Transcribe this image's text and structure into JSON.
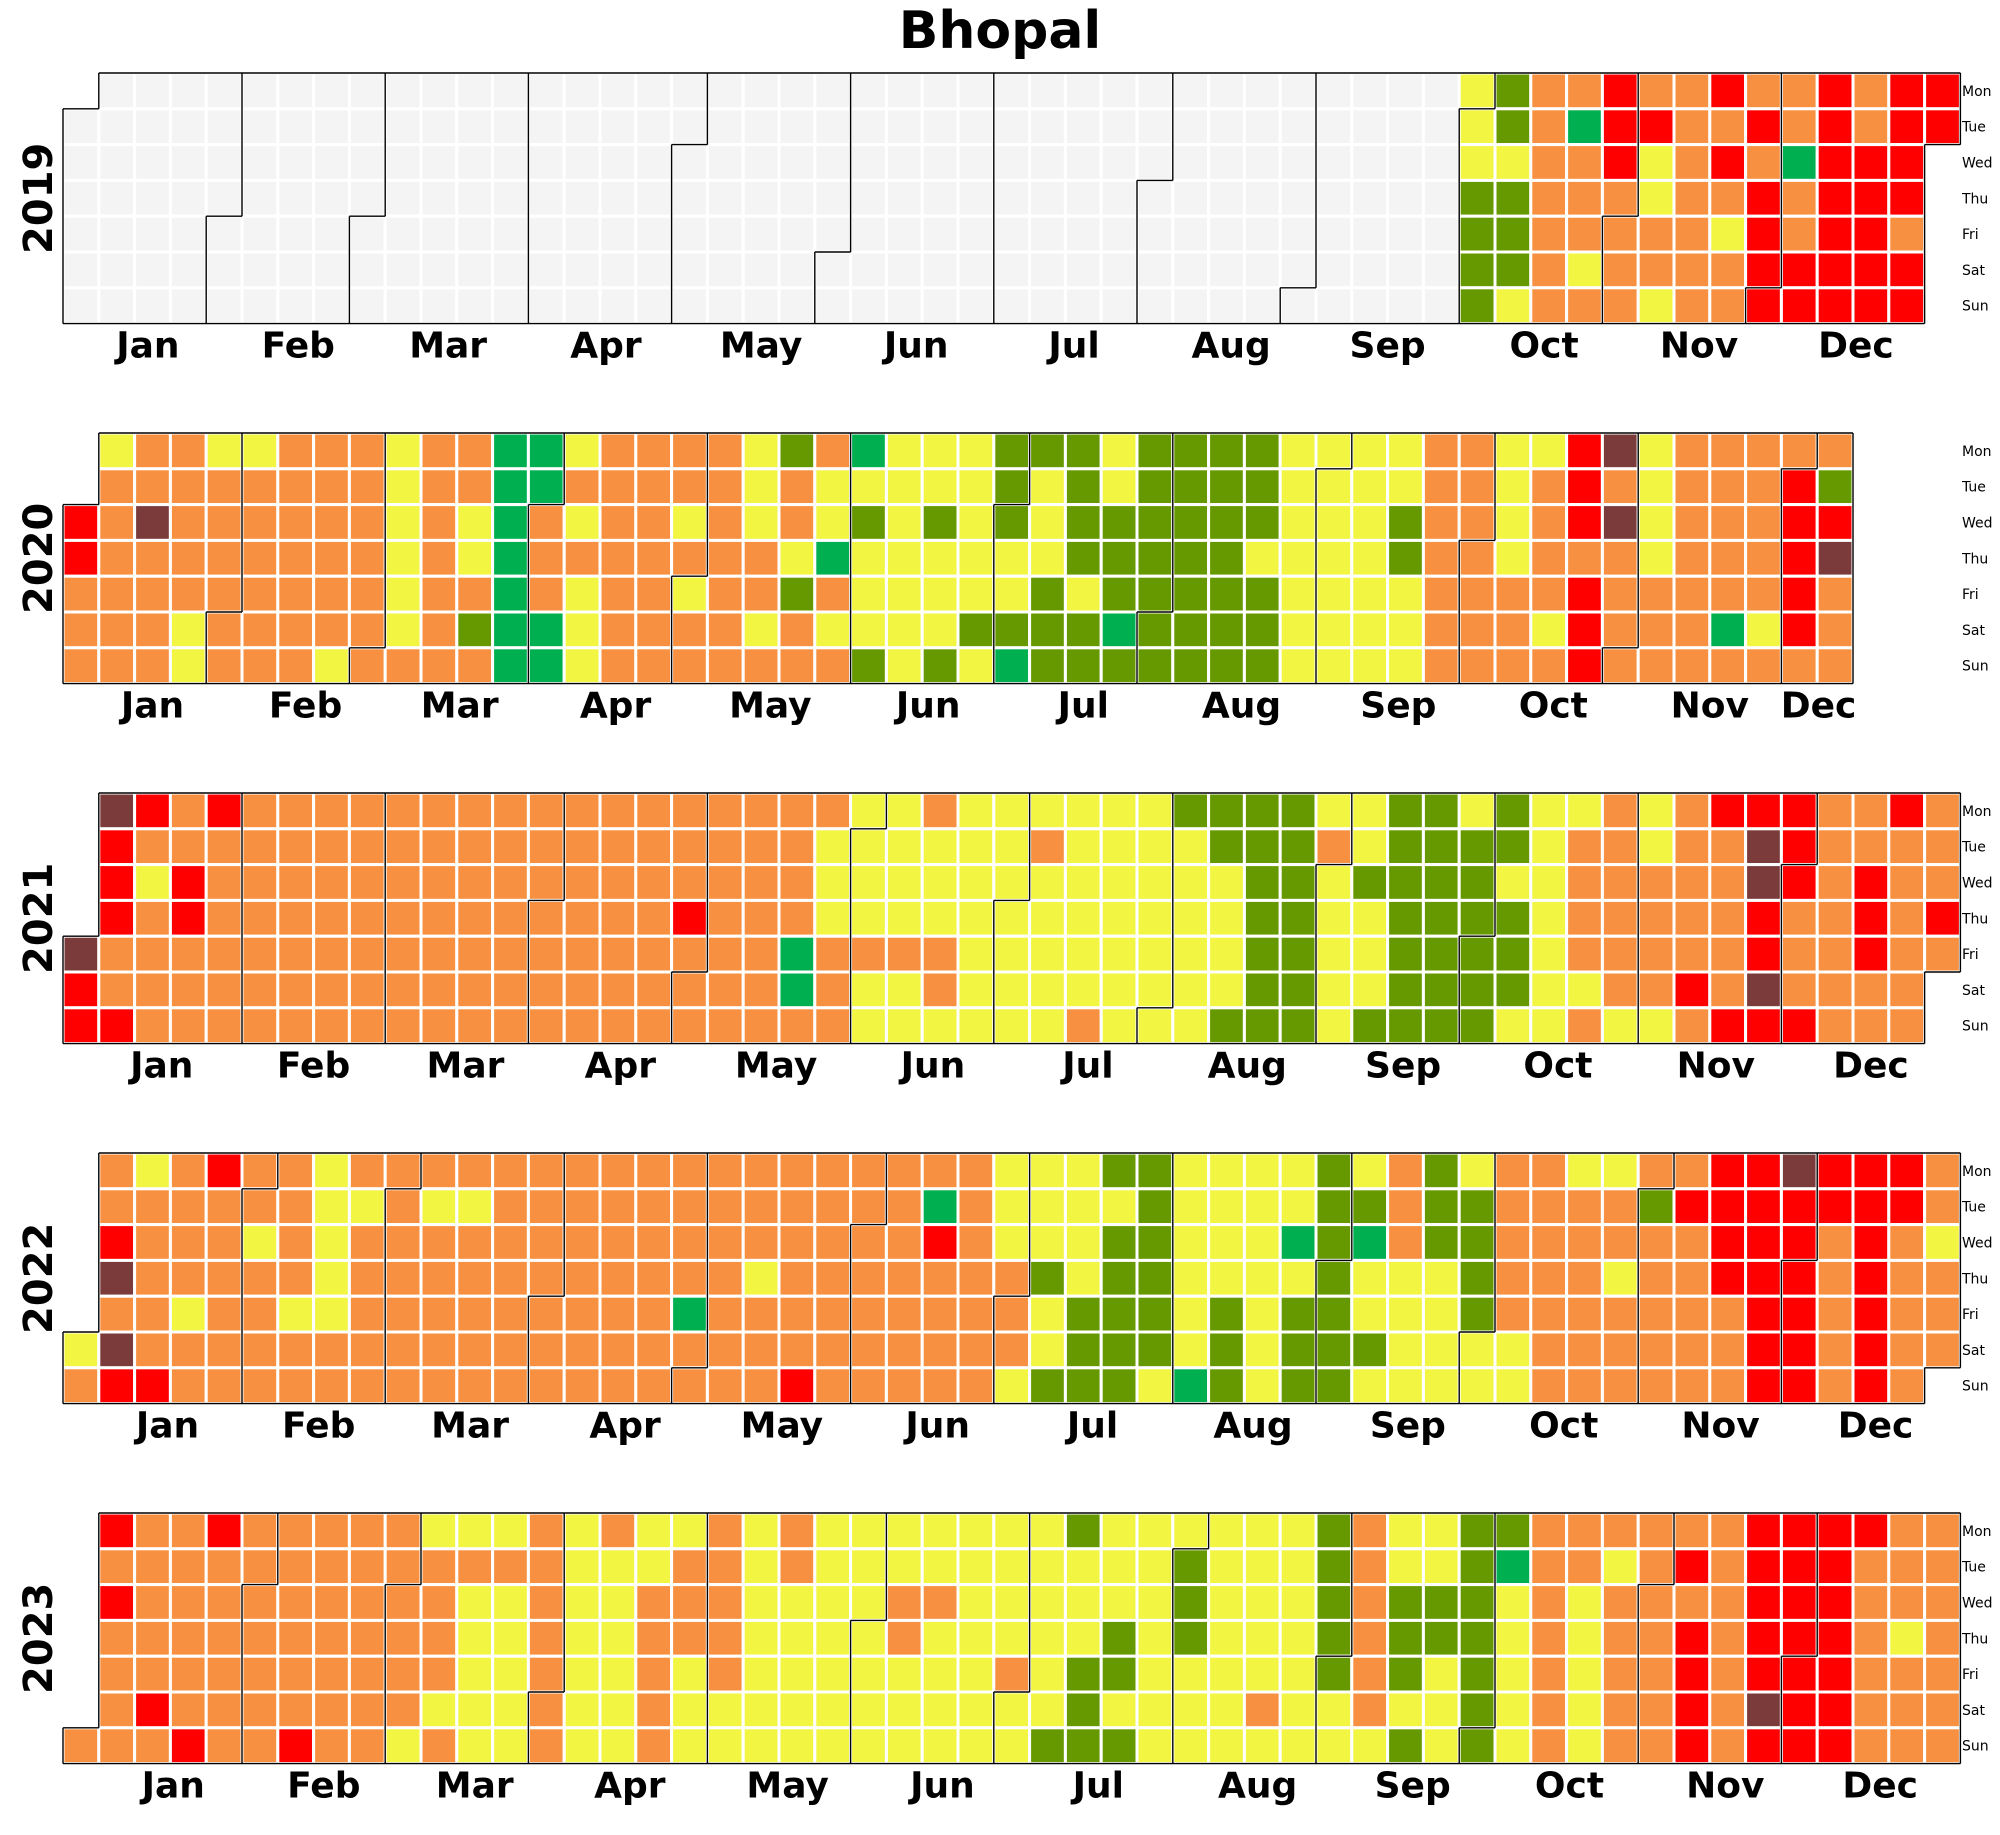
{
  "chart_data": {
    "type": "heatmap",
    "title": "Bhopal",
    "month_labels": [
      "Jan",
      "Feb",
      "Mar",
      "Apr",
      "May",
      "Jun",
      "Jul",
      "Aug",
      "Sep",
      "Oct",
      "Nov",
      "Dec"
    ],
    "weekday_labels": [
      "Mon",
      "Tue",
      "Wed",
      "Thu",
      "Fri",
      "Sat",
      "Sun"
    ],
    "colors": {
      "0": "#f4f4f4",
      "1": "#00b050",
      "2": "#669900",
      "3": "#f2f542",
      "4": "#f79040",
      "5": "#ff0000",
      "6": "#7b3b3b"
    },
    "years": [
      {
        "year": "2019",
        "weeks": [
          "_000000",
          "0000000",
          "0000000",
          "0000000",
          "0000000",
          "0000000",
          "0000000",
          "0000000",
          "0000000",
          "0000000",
          "0000000",
          "0000000",
          "0000000",
          "0000000",
          "0000000",
          "0000000",
          "0000000",
          "0000000",
          "0000000",
          "0000000",
          "0000000",
          "0000000",
          "0000000",
          "0000000",
          "0000000",
          "0000000",
          "0000000",
          "0000000",
          "0000000",
          "0000000",
          "0000000",
          "0000000",
          "0000000",
          "0000000",
          "0000000",
          "0000000",
          "0000000",
          "0000000",
          "0000000",
          "3332222",
          "2232223",
          "4444444",
          "4144434",
          "5554444",
          "4533443",
          "4444444",
          "5454344",
          "4545555",
          "4414455",
          "5555555",
          "4455555",
          "5555455",
          "5555454",
          "5555444",
          "4454434",
          "4544444",
          "45"
        ]
      },
      {
        "year": "2020",
        "weeks": [
          "__55444",
          "3444444",
          "4464444",
          "4444433",
          "3444444",
          "3444444",
          "4444444",
          "4444443",
          "4444444",
          "3333334",
          "4444444",
          "4433424",
          "1111111",
          "1144411",
          "3434333",
          "4444444",
          "4444444",
          "4434344",
          "4444444",
          "3334434",
          "2443244",
          "4331434",
          "1323332",
          "3333333",
          "3323332",
          "3333323",
          "2223321",
          "2333222",
          "2222322",
          "3322212",
          "2222222",
          "2222222",
          "2222222",
          "2223222",
          "3333333",
          "3333333",
          "3333333",
          "3322333",
          "4444444",
          "4444444",
          "3333444",
          "3444434",
          "5554555",
          "6464444",
          "3333444",
          "4444444",
          "4444414",
          "4444434",
          "4555554",
          "4256444"
        ]
      },
      {
        "year": "2021",
        "weeks": [
          "____655",
          "6555445",
          "5434444",
          "4455444",
          "5444444",
          "4444444",
          "4444444",
          "4444444",
          "4444444",
          "4444444",
          "4444444",
          "4444444",
          "4444444",
          "4444444",
          "4444444",
          "4444444",
          "4444444",
          "4445444",
          "4444444",
          "4444444",
          "4444114",
          "4333444",
          "3333433",
          "3333433",
          "4333443",
          "3333333",
          "3333333",
          "3433333",
          "3333334",
          "3333333",
          "3333333",
          "2333333",
          "2233332",
          "2222222",
          "2222222",
          "3433333",
          "3323332",
          "2222222",
          "2222222",
          "3222222",
          "2232223",
          "3333333",
          "3444434",
          "4444443",
          "3344443",
          "4444454",
          "5444445",
          "5665565",
          "5554445",
          "4444444",
          "4455544",
          "5444444",
          "4445444",
          "4444454",
          "5555444"
        ]
      },
      {
        "year": "2022",
        "weeks": [
          "_____34",
          "4456465",
          "3444445",
          "4444344",
          "5444444",
          "4434444",
          "4444344",
          "3333344",
          "4344444",
          "4444444",
          "4344444",
          "4344444",
          "4444444",
          "4444444",
          "4444444",
          "4444444",
          "4444444",
          "4444144",
          "4444444",
          "4443444",
          "4444445",
          "4444444",
          "4444444",
          "4444444",
          "4154444",
          "4444444",
          "3334443",
          "3332332",
          "3333222",
          "2322222",
          "2222223",
          "3333331",
          "3333222",
          "3333333",
          "3313222",
          "2222222",
          "3213323",
          "4443333",
          "2223333",
          "3222233",
          "4444433",
          "4444444",
          "3444444",
          "3443444",
          "4244444",
          "4544444",
          "5555444",
          "5555555",
          "6555555",
          "5544444",
          "5555555",
          "5544444",
          "4434444",
          "4444544",
          "5444444"
        ]
      },
      {
        "year": "2023",
        "weeks": [
          "______4",
          "5454444",
          "4444454",
          "4444445",
          "5444444",
          "4444444",
          "4444445",
          "4444444",
          "4444444",
          "4444443",
          "3444434",
          "3433333",
          "3433333",
          "4444444",
          "3333333",
          "4333333",
          "3344444",
          "3444333",
          "4444433",
          "3333333",
          "4433333",
          "3333333",
          "3333333",
          "3344333",
          "3343333",
          "3333333",
          "3333433",
          "3333332",
          "2333222",
          "3332232",
          "3333333",
          "3222333",
          "3333333",
          "3333343",
          "3333333",
          "2222233",
          "4444443",
          "3322232",
          "3322333",
          "2222222",
          "2133333",
          "4444444",
          "4433333",
          "4344444",
          "4444444",
          "4545555",
          "4444444",
          "5555565",
          "5555555",
          "5555555",
          "5444444",
          "4443444",
          "4444444",
          "4444455",
          "6444455"
        ]
      }
    ]
  }
}
